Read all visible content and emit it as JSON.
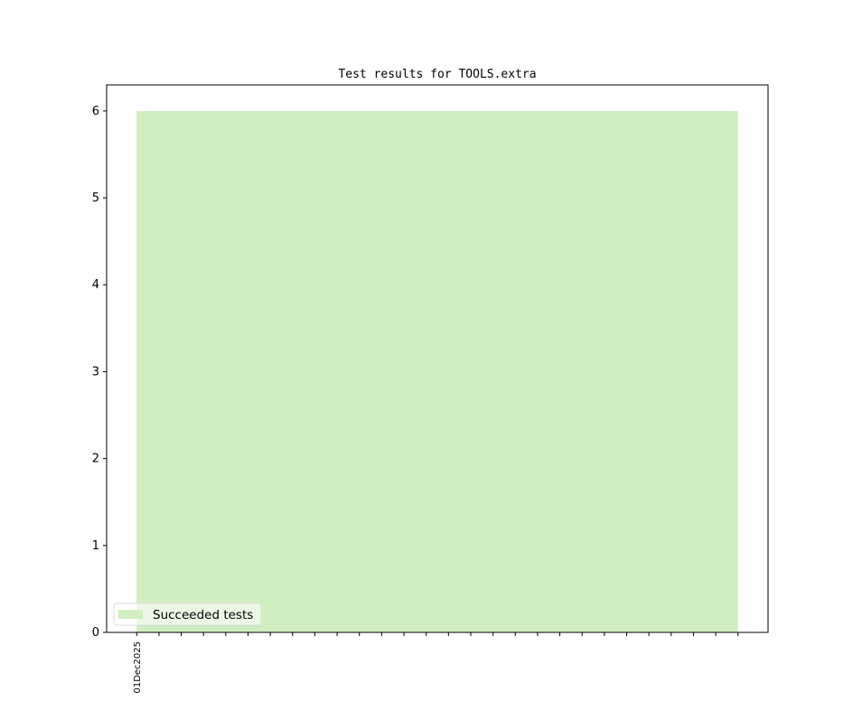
{
  "chart_data": {
    "type": "area",
    "title": "Test results for TOOLS.extra",
    "xlabel": "",
    "ylabel": "",
    "x_tick_count": 28,
    "x_tick_labels": [
      "01Dec2025"
    ],
    "x": [
      0,
      1,
      2,
      3,
      4,
      5,
      6,
      7,
      8,
      9,
      10,
      11,
      12,
      13,
      14,
      15,
      16,
      17,
      18,
      19,
      20,
      21,
      22,
      23,
      24,
      25,
      26,
      27
    ],
    "series": [
      {
        "name": "Succeeded tests",
        "color": "#d0eec0",
        "values": [
          6,
          6,
          6,
          6,
          6,
          6,
          6,
          6,
          6,
          6,
          6,
          6,
          6,
          6,
          6,
          6,
          6,
          6,
          6,
          6,
          6,
          6,
          6,
          6,
          6,
          6,
          6,
          6
        ]
      }
    ],
    "xlim": [
      -1.35,
      28.35
    ],
    "ylim": [
      0,
      6.3
    ],
    "y_ticks": [
      0,
      1,
      2,
      3,
      4,
      5,
      6
    ],
    "grid": false,
    "legend_position": "lower-left"
  }
}
